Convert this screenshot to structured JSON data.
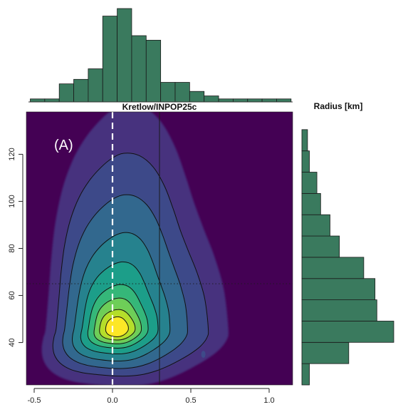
{
  "chart_data": [
    {
      "type": "histogram",
      "orientation": "vertical",
      "position": "top",
      "bin_start": -0.525,
      "bin_width": 0.0925,
      "counts": [
        2,
        2,
        12,
        15,
        22,
        57,
        62,
        44,
        41,
        13,
        13,
        7,
        4,
        2,
        2,
        2,
        2,
        2
      ],
      "fill_color": "#3a7a5e"
    },
    {
      "type": "contour",
      "title": "Kretlow/INPOP25c",
      "panel_label": "(A)",
      "xlim": [
        -0.55,
        1.15
      ],
      "ylim": [
        22,
        138
      ],
      "xticks": [
        -0.5,
        0.0,
        0.5,
        1.0
      ],
      "xtick_labels": [
        "-0.5",
        "0.0",
        "0.5",
        "1.0"
      ],
      "yticks": [
        40,
        60,
        80,
        100,
        120
      ],
      "ytick_labels": [
        "40",
        "60",
        "80",
        "100",
        "120"
      ],
      "reference_lines": {
        "x_zero_dashed": 0.0,
        "x_solid": 0.3,
        "y_dotted": 65
      },
      "density_peak": {
        "x": 0.0,
        "y": 46
      },
      "colormap": [
        "#440154",
        "#3b528b",
        "#21918c",
        "#5ec962",
        "#fde725"
      ]
    },
    {
      "type": "histogram",
      "orientation": "horizontal",
      "position": "right",
      "title": "Radius [km]",
      "bin_start": 22,
      "bin_width": 9.04,
      "counts": [
        4,
        25,
        49,
        40,
        39,
        33,
        20,
        15,
        10,
        8,
        4,
        3
      ],
      "fill_color": "#3a7a5e"
    }
  ]
}
